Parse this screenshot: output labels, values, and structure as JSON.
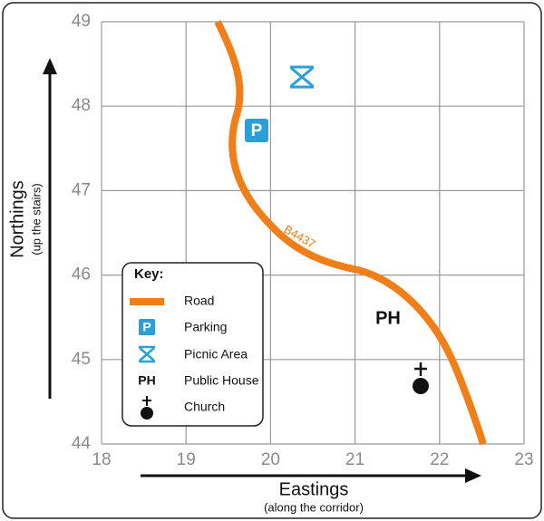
{
  "axes": {
    "x_ticks": [
      "18",
      "19",
      "20",
      "21",
      "22",
      "23"
    ],
    "y_ticks": [
      "49",
      "48",
      "47",
      "46",
      "45",
      "44"
    ],
    "x_title": "Eastings",
    "x_subtitle": "(along the corridor)",
    "y_title": "Northings",
    "y_subtitle": "(up the stairs)"
  },
  "map_labels": {
    "road": "B4437",
    "public_house": "PH",
    "parking_icon": "P"
  },
  "key": {
    "title": "Key:",
    "items": [
      {
        "label": "Road"
      },
      {
        "symbol": "P",
        "label": "Parking"
      },
      {
        "label": "Picnic Area"
      },
      {
        "symbol": "PH",
        "label": "Public House"
      },
      {
        "label": "Church"
      }
    ]
  }
}
